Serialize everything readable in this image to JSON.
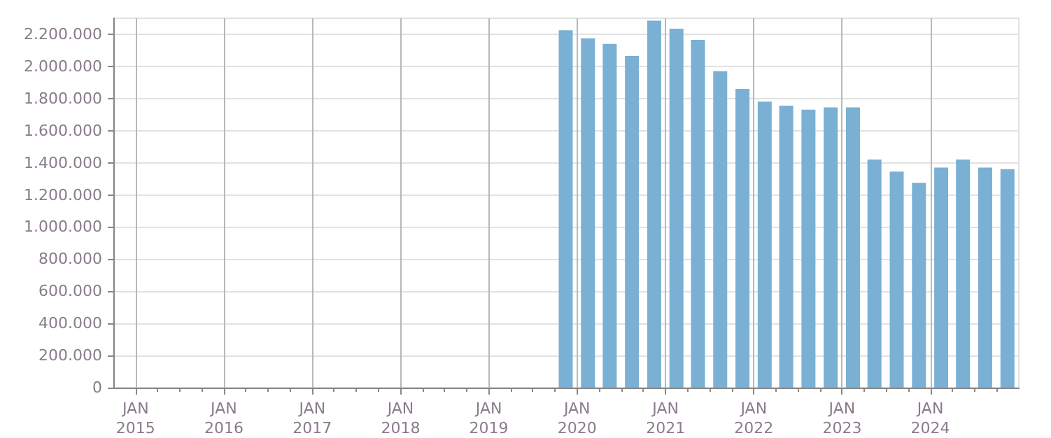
{
  "chart_data": {
    "type": "bar",
    "x": [
      "2019-11-15",
      "2020-02-15",
      "2020-05-15",
      "2020-08-15",
      "2020-11-15",
      "2021-02-15",
      "2021-05-15",
      "2021-08-15",
      "2021-11-15",
      "2022-02-15",
      "2022-05-15",
      "2022-08-15",
      "2022-11-15",
      "2023-02-15",
      "2023-05-15",
      "2023-08-15",
      "2023-11-15",
      "2024-02-15",
      "2024-05-15",
      "2024-08-15",
      "2024-11-15"
    ],
    "values": [
      2225000,
      2175000,
      2140000,
      2065000,
      2285000,
      2235000,
      2165000,
      1970000,
      1860000,
      1780000,
      1755000,
      1730000,
      1745000,
      1745000,
      1420000,
      1345000,
      1275000,
      1370000,
      1420000,
      1370000,
      1360000
    ],
    "color": "#7ab0d4",
    "xlim": [
      "2014-10-01",
      "2025-01-01"
    ],
    "xticks": [
      {
        "value": "2015-01-01",
        "label": "JAN\n2015"
      },
      {
        "value": "2015-04-01",
        "label": null
      },
      {
        "value": "2015-07-01",
        "label": null
      },
      {
        "value": "2015-10-01",
        "label": null
      },
      {
        "value": "2016-01-01",
        "label": "JAN\n2016"
      },
      {
        "value": "2016-04-01",
        "label": null
      },
      {
        "value": "2016-07-01",
        "label": null
      },
      {
        "value": "2016-10-01",
        "label": null
      },
      {
        "value": "2017-01-01",
        "label": "JAN\n2017"
      },
      {
        "value": "2017-04-01",
        "label": null
      },
      {
        "value": "2017-07-01",
        "label": null
      },
      {
        "value": "2017-10-01",
        "label": null
      },
      {
        "value": "2018-01-01",
        "label": "JAN\n2018"
      },
      {
        "value": "2018-04-01",
        "label": null
      },
      {
        "value": "2018-07-01",
        "label": null
      },
      {
        "value": "2018-10-01",
        "label": null
      },
      {
        "value": "2019-01-01",
        "label": "JAN\n2019"
      },
      {
        "value": "2019-04-01",
        "label": null
      },
      {
        "value": "2019-07-01",
        "label": null
      },
      {
        "value": "2019-10-01",
        "label": null
      },
      {
        "value": "2020-01-01",
        "label": "JAN\n2020"
      },
      {
        "value": "2020-04-01",
        "label": null
      },
      {
        "value": "2020-07-01",
        "label": null
      },
      {
        "value": "2020-10-01",
        "label": null
      },
      {
        "value": "2021-01-01",
        "label": "JAN\n2021"
      },
      {
        "value": "2021-04-01",
        "label": null
      },
      {
        "value": "2021-07-01",
        "label": null
      },
      {
        "value": "2021-10-01",
        "label": null
      },
      {
        "value": "2022-01-01",
        "label": "JAN\n2022"
      },
      {
        "value": "2022-04-01",
        "label": null
      },
      {
        "value": "2022-07-01",
        "label": null
      },
      {
        "value": "2022-10-01",
        "label": null
      },
      {
        "value": "2023-01-01",
        "label": "JAN\n2023"
      },
      {
        "value": "2023-04-01",
        "label": null
      },
      {
        "value": "2023-07-01",
        "label": null
      },
      {
        "value": "2023-10-01",
        "label": null
      },
      {
        "value": "2024-01-01",
        "label": "JAN\n2024"
      },
      {
        "value": "2024-04-01",
        "label": null
      },
      {
        "value": "2024-07-01",
        "label": null
      },
      {
        "value": "2024-10-01",
        "label": null
      }
    ],
    "ylim": [
      0,
      2300000
    ],
    "yticks": [
      {
        "value": 0,
        "label": "0"
      },
      {
        "value": 200000,
        "label": "200.000"
      },
      {
        "value": 400000,
        "label": "400.000"
      },
      {
        "value": 600000,
        "label": "600.000"
      },
      {
        "value": 800000,
        "label": "800.000"
      },
      {
        "value": 1000000,
        "label": "1.000.000"
      },
      {
        "value": 1200000,
        "label": "1.200.000"
      },
      {
        "value": 1400000,
        "label": "1.400.000"
      },
      {
        "value": 1600000,
        "label": "1.600.000"
      },
      {
        "value": 1800000,
        "label": "1.800.000"
      },
      {
        "value": 2000000,
        "label": "2.000.000"
      },
      {
        "value": 2200000,
        "label": "2.200.000"
      }
    ],
    "grid": true
  }
}
